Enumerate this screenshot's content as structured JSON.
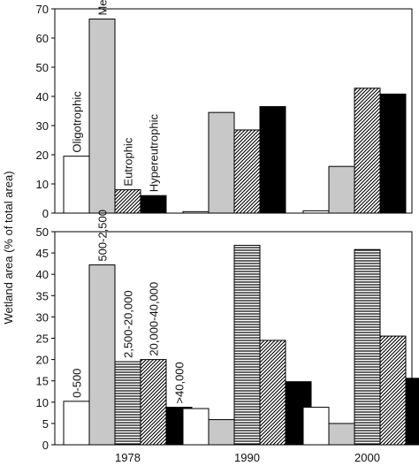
{
  "figure": {
    "ylabel": "Wetland area (% of total area)"
  },
  "colors": {
    "white": "#ffffff",
    "light_gray": "#c8c8c8",
    "black": "#000000",
    "stroke": "#000000"
  },
  "chart_data": [
    {
      "type": "bar",
      "categories": [
        "1978",
        "1990",
        "2000"
      ],
      "ylim": [
        0,
        70
      ],
      "yticks": [
        0,
        10,
        20,
        30,
        40,
        50,
        60,
        70
      ],
      "series": [
        {
          "name": "Oligotrophic",
          "pattern": "white",
          "values": [
            19.5,
            0.5,
            0.8
          ]
        },
        {
          "name": "Mesotrophic",
          "pattern": "light-gray",
          "values": [
            66.5,
            34.5,
            16.0
          ]
        },
        {
          "name": "Eutrophic",
          "pattern": "diagonal-hatch",
          "values": [
            8.0,
            28.5,
            42.8
          ]
        },
        {
          "name": "Hypereutrophic",
          "pattern": "black",
          "values": [
            6.0,
            36.5,
            40.8
          ]
        }
      ],
      "bar_labels_group": "1978"
    },
    {
      "type": "bar",
      "categories": [
        "1978",
        "1990",
        "2000"
      ],
      "ylim": [
        0,
        50
      ],
      "yticks": [
        0,
        5,
        10,
        15,
        20,
        25,
        30,
        35,
        40,
        45,
        50
      ],
      "series": [
        {
          "name": "0-500",
          "pattern": "white",
          "values": [
            10.2,
            8.5,
            8.8
          ]
        },
        {
          "name": "500-2,500",
          "pattern": "light-gray",
          "values": [
            42.2,
            5.9,
            5.0
          ]
        },
        {
          "name": "2,500-20,000",
          "pattern": "horizontal-lines",
          "values": [
            19.5,
            46.8,
            45.8
          ]
        },
        {
          "name": "20,000-40,000",
          "pattern": "diagonal-hatch",
          "values": [
            20.0,
            24.5,
            25.5
          ]
        },
        {
          "name": ">40,000",
          "pattern": "black",
          "values": [
            8.8,
            14.8,
            15.6
          ]
        }
      ],
      "bar_labels_group": "1978"
    }
  ]
}
